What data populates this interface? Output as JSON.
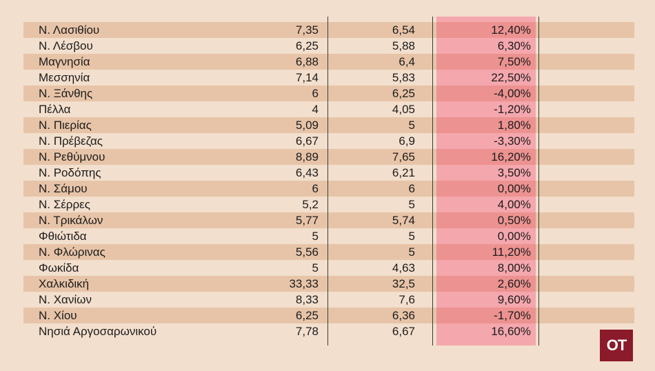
{
  "table": {
    "rows": [
      {
        "name": "Ν. Λασιθίου",
        "a": "7,35",
        "b": "6,54",
        "c": "12,40%"
      },
      {
        "name": "Ν. Λέσβου",
        "a": "6,25",
        "b": "5,88",
        "c": "6,30%"
      },
      {
        "name": "Μαγνησία",
        "a": "6,88",
        "b": "6,4",
        "c": "7,50%"
      },
      {
        "name": "Μεσσηνία",
        "a": "7,14",
        "b": "5,83",
        "c": "22,50%"
      },
      {
        "name": "Ν. Ξάνθης",
        "a": "6",
        "b": "6,25",
        "c": "-4,00%"
      },
      {
        "name": "Πέλλα",
        "a": "4",
        "b": "4,05",
        "c": "-1,20%"
      },
      {
        "name": "Ν. Πιερίας",
        "a": "5,09",
        "b": "5",
        "c": "1,80%"
      },
      {
        "name": "Ν. Πρέβεζας",
        "a": "6,67",
        "b": "6,9",
        "c": "-3,30%"
      },
      {
        "name": "Ν. Ρεθύμνου",
        "a": "8,89",
        "b": "7,65",
        "c": "16,20%"
      },
      {
        "name": "Ν. Ροδόπης",
        "a": "6,43",
        "b": "6,21",
        "c": "3,50%"
      },
      {
        "name": "Ν. Σάμου",
        "a": "6",
        "b": "6",
        "c": "0,00%"
      },
      {
        "name": "Ν. Σέρρες",
        "a": "5,2",
        "b": "5",
        "c": "4,00%"
      },
      {
        "name": "Ν. Τρικάλων",
        "a": "5,77",
        "b": "5,74",
        "c": "0,50%"
      },
      {
        "name": "Φθιώτιδα",
        "a": "5",
        "b": "5",
        "c": "0,00%"
      },
      {
        "name": "Ν. Φλώρινας",
        "a": "5,56",
        "b": "5",
        "c": "11,20%"
      },
      {
        "name": "Φωκίδα",
        "a": "5",
        "b": "4,63",
        "c": "8,00%"
      },
      {
        "name": "Χαλκιδική",
        "a": "33,33",
        "b": "32,5",
        "c": "2,60%"
      },
      {
        "name": "Ν. Χανίων",
        "a": "8,33",
        "b": "7,6",
        "c": "9,60%"
      },
      {
        "name": "Ν. Χίου",
        "a": "6,25",
        "b": "6,36",
        "c": "-1,70%"
      },
      {
        "name": "Νησιά Αργοσαρωνικού",
        "a": "7,78",
        "b": "6,67",
        "c": "16,60%"
      }
    ]
  },
  "logo": {
    "text": "OT",
    "color": "#8b1a2b"
  },
  "colors": {
    "background": "#f2dfcd",
    "stripe": "#e7c4a8",
    "highlight": "#f4a7ad",
    "highlight_stripe": "#ec9290"
  }
}
